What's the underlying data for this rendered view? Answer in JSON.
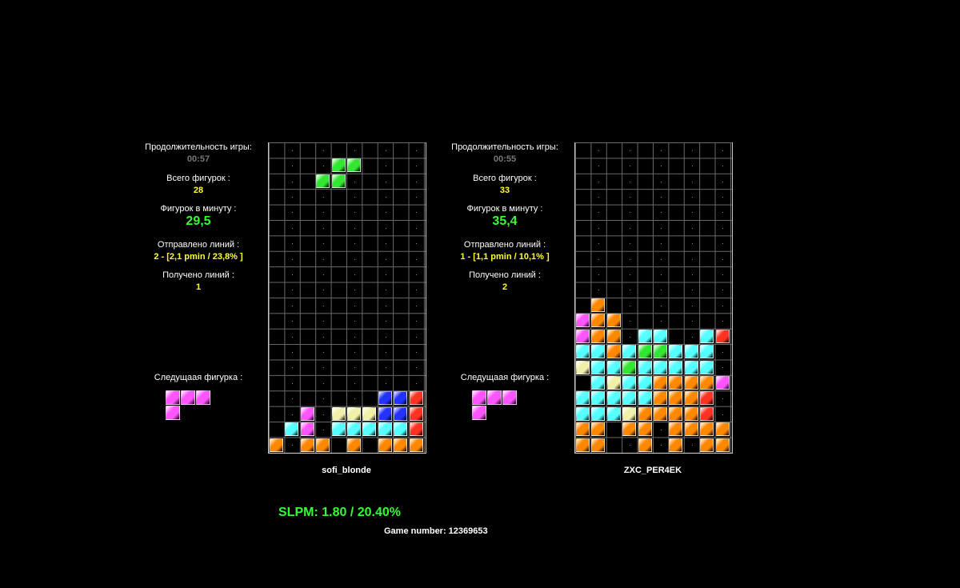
{
  "labels": {
    "duration": "Продолжительность игры:",
    "total_pieces": "Всего фигурок :",
    "ppm": "Фигурок в минуту :",
    "lines_sent": "Отправлено линий :",
    "lines_received": "Получено линий :",
    "next_piece": "Следущаая фигурка :"
  },
  "players": [
    {
      "name": "sofi_blonde",
      "duration": "00:57",
      "total_pieces": "28",
      "ppm": "29,5",
      "lines_sent": "2 - [2,1 pmin / 23,8% ]",
      "lines_received": "1"
    },
    {
      "name": "ZXC_PER4EK",
      "duration": "00:55",
      "total_pieces": "33",
      "ppm": "35,4",
      "lines_sent": "1 - [1,1 pmin / 10,1% ]",
      "lines_received": "2"
    }
  ],
  "footer": {
    "slpm": "SLPM:  1.80 / 20.40%",
    "game_number": "Game number: 12369653"
  },
  "colors": {
    "G": "#33e633",
    "M": "#ff55ff",
    "C": "#55ffff",
    "Y": "#f0f0aa",
    "B": "#2233ff",
    "R": "#ff3322",
    "O": "#ff8800",
    "J": "#ff8800"
  },
  "boards": [
    {
      "rows": [
        "..........",
        "....GG....",
        "...GG.....",
        "..........",
        "..........",
        "..........",
        "..........",
        "..........",
        "..........",
        "..........",
        "..........",
        "..........",
        "..........",
        "..........",
        "..........",
        "..........",
        ".......BBR",
        "..M.YYYBBR",
        ".CM.CCCCCR",
        "J.JJ.J.JJJ"
      ]
    },
    {
      "rows": [
        "..........",
        "..........",
        "..........",
        "..........",
        "..........",
        "..........",
        "..........",
        "..........",
        "..........",
        "..........",
        ".O........",
        "MOO.......",
        "MOO.CC..CR",
        "CCOCGGCCC.",
        "YCCGCCCCC.",
        ".CYCCOOOOM",
        "CCCCCOOOR.",
        "CCCYOOOOR.",
        "JJ.JJ.JJJJ",
        "JJ..J.J.JJ"
      ]
    }
  ],
  "next_piece": [
    {
      "cells": [
        "MMM",
        "M.."
      ]
    },
    {
      "cells": [
        "MMM",
        "M.."
      ]
    }
  ]
}
